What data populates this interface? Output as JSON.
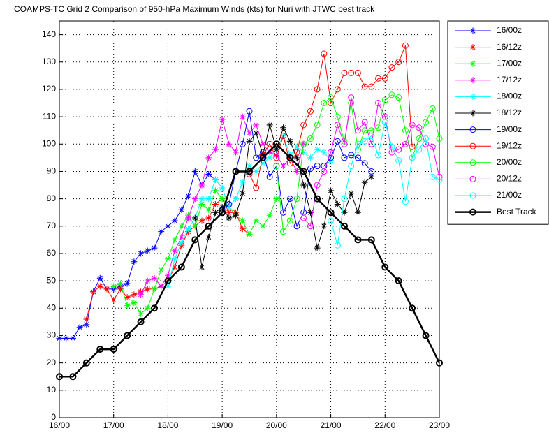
{
  "chart_data": {
    "type": "line",
    "title": "COAMPS-TC Grid 2 Comparison of 950-hPa Maximum Winds (kts) for Nuri with JTWC best track",
    "xlim": [
      16,
      23
    ],
    "xticks": [
      {
        "value": 16,
        "label": "16/00"
      },
      {
        "value": 17,
        "label": "17/00"
      },
      {
        "value": 18,
        "label": "18/00"
      },
      {
        "value": 19,
        "label": "19/00"
      },
      {
        "value": 20,
        "label": "20/00"
      },
      {
        "value": 21,
        "label": "21/00"
      },
      {
        "value": 22,
        "label": "22/00"
      },
      {
        "value": 23,
        "label": "23/00"
      }
    ],
    "ylim": [
      0,
      145
    ],
    "yticks": [
      0,
      10,
      20,
      30,
      40,
      50,
      60,
      70,
      80,
      90,
      100,
      110,
      120,
      130,
      140
    ],
    "grid": true,
    "legend": "outside-right",
    "series": [
      {
        "name": "16/00z",
        "color": "#0000ff",
        "marker": "star",
        "width": 1,
        "x": [
          16,
          16.125,
          16.25,
          16.375,
          16.5,
          16.625,
          16.75,
          16.875,
          17,
          17.125,
          17.25,
          17.375,
          17.5,
          17.625,
          17.75,
          17.875,
          18,
          18.125,
          18.25,
          18.375,
          18.5,
          18.625,
          18.75,
          18.875
        ],
        "values": [
          29,
          29,
          29,
          33,
          34,
          46,
          51,
          47,
          47,
          48,
          49,
          57,
          60,
          61,
          62,
          68,
          70,
          72,
          76,
          81,
          90,
          85,
          89,
          87
        ]
      },
      {
        "name": "16/12z",
        "color": "#ff0000",
        "marker": "star",
        "width": 1,
        "x": [
          16.5,
          16.625,
          16.75,
          16.875,
          17,
          17.125,
          17.25,
          17.375,
          17.5,
          17.625,
          17.75,
          17.875,
          18,
          18.125,
          18.25,
          18.375,
          18.5,
          18.625,
          18.75,
          18.875,
          19,
          19.125,
          19.25,
          19.375,
          19.5
        ],
        "values": [
          36,
          46,
          48,
          47,
          43,
          47,
          44,
          45,
          46,
          47,
          47,
          48,
          50,
          55,
          63,
          68,
          70,
          72,
          73,
          78,
          80,
          75,
          75,
          69,
          67
        ]
      },
      {
        "name": "17/00z",
        "color": "#00ff00",
        "marker": "star",
        "width": 1,
        "x": [
          17,
          17.125,
          17.25,
          17.375,
          17.5,
          17.625,
          17.75,
          17.875,
          18,
          18.125,
          18.25,
          18.375,
          18.5,
          18.625,
          18.75,
          18.875,
          19,
          19.125,
          19.25,
          19.375,
          19.5,
          19.625,
          19.75,
          19.875,
          20
        ],
        "values": [
          48,
          49,
          41,
          42,
          38,
          40,
          47,
          54,
          58,
          65,
          70,
          74,
          70,
          78,
          76,
          83,
          80,
          77,
          74,
          72,
          67,
          72,
          70,
          74,
          80
        ]
      },
      {
        "name": "17/12z",
        "color": "#ff00ff",
        "marker": "star",
        "width": 1,
        "x": [
          17.5,
          17.625,
          17.75,
          17.875,
          18,
          18.125,
          18.25,
          18.375,
          18.5,
          18.625,
          18.75,
          18.875,
          19,
          19.125,
          19.25,
          19.375,
          19.5,
          19.625,
          19.75,
          19.875,
          20,
          20.125,
          20.25,
          20.375,
          20.5
        ],
        "values": [
          45,
          50,
          51,
          48,
          52,
          61,
          66,
          73,
          80,
          85,
          95,
          98,
          109,
          100,
          97,
          110,
          104,
          107,
          100,
          97,
          96,
          92,
          95,
          90,
          100
        ]
      },
      {
        "name": "18/00z",
        "color": "#00ffff",
        "marker": "star",
        "width": 1,
        "x": [
          18,
          18.125,
          18.25,
          18.375,
          18.5,
          18.625,
          18.75,
          18.875,
          19,
          19.125,
          19.25,
          19.375,
          19.5,
          19.625,
          19.75,
          19.875,
          20,
          20.125,
          20.25,
          20.375,
          20.5,
          20.625,
          20.75,
          20.875,
          21
        ],
        "values": [
          48,
          58,
          64,
          69,
          73,
          80,
          80,
          87,
          84,
          77,
          80,
          86,
          92,
          90,
          93,
          95,
          98,
          103,
          96,
          99,
          97,
          95,
          98,
          97,
          94
        ]
      },
      {
        "name": "18/12z",
        "color": "#000000",
        "marker": "star",
        "width": 1,
        "x": [
          18.5,
          18.625,
          18.75,
          18.875,
          19,
          19.125,
          19.25,
          19.375,
          19.5,
          19.625,
          19.75,
          19.875,
          20,
          20.125,
          20.25,
          20.375,
          20.5,
          20.625,
          20.75,
          20.875,
          21,
          21.125,
          21.25,
          21.375,
          21.5,
          21.625,
          21.75
        ],
        "values": [
          73,
          55,
          66,
          75,
          77,
          73,
          74,
          82,
          101,
          104,
          96,
          107,
          98,
          106,
          101,
          95,
          85,
          75,
          62,
          70,
          83,
          78,
          75,
          82,
          75,
          86,
          88
        ]
      },
      {
        "name": "19/00z",
        "color": "#0000ff",
        "marker": "circle",
        "width": 1,
        "x": [
          19,
          19.125,
          19.25,
          19.375,
          19.5,
          19.625,
          19.75,
          19.875,
          20,
          20.125,
          20.25,
          20.375,
          20.5,
          20.625,
          20.75,
          20.875,
          21,
          21.125,
          21.25,
          21.375,
          21.5,
          21.625,
          21.75
        ],
        "values": [
          76,
          78,
          90,
          100,
          112,
          95,
          97,
          88,
          92,
          75,
          80,
          70,
          75,
          91,
          92,
          92,
          95,
          101,
          95,
          96,
          95,
          93,
          90
        ]
      },
      {
        "name": "19/12z",
        "color": "#ff0000",
        "marker": "circle",
        "width": 1,
        "x": [
          19.5,
          19.625,
          19.75,
          19.875,
          20,
          20.125,
          20.25,
          20.375,
          20.5,
          20.625,
          20.75,
          20.875,
          21,
          21.125,
          21.25,
          21.375,
          21.5,
          21.625,
          21.75,
          21.875,
          22,
          22.125,
          22.25,
          22.375,
          22.5
        ],
        "values": [
          89,
          84,
          96,
          100,
          95,
          103,
          93,
          97,
          107,
          112,
          120,
          133,
          115,
          120,
          126,
          126,
          126,
          121,
          121,
          124,
          124,
          128,
          130,
          136,
          99
        ]
      },
      {
        "name": "20/00z",
        "color": "#00ff00",
        "marker": "circle",
        "width": 1,
        "x": [
          20,
          20.125,
          20.25,
          20.375,
          20.5,
          20.625,
          20.75,
          20.875,
          21,
          21.125,
          21.25,
          21.375,
          21.5,
          21.625,
          21.75,
          21.875,
          22,
          22.125,
          22.25,
          22.375,
          22.5,
          22.625,
          22.75,
          22.875,
          23
        ],
        "values": [
          92,
          68,
          72,
          80,
          100,
          102,
          107,
          115,
          117,
          110,
          101,
          115,
          98,
          105,
          105,
          106,
          116,
          118,
          117,
          105,
          95,
          102,
          108,
          113,
          102
        ]
      },
      {
        "name": "20/12z",
        "color": "#ff00ff",
        "marker": "circle",
        "width": 1,
        "x": [
          20.5,
          20.625,
          20.75,
          20.875,
          21,
          21.125,
          21.25,
          21.375,
          21.5,
          21.625,
          21.75,
          21.875,
          22,
          22.125,
          22.25,
          22.375,
          22.5,
          22.625,
          22.75,
          22.875,
          23
        ],
        "values": [
          73,
          70,
          85,
          90,
          97,
          107,
          100,
          117,
          105,
          108,
          100,
          115,
          110,
          97,
          98,
          100,
          107,
          106,
          100,
          99,
          88
        ]
      },
      {
        "name": "21/00z",
        "color": "#00ffff",
        "marker": "circle",
        "width": 1,
        "x": [
          21,
          21.125,
          21.25,
          21.375,
          21.5,
          21.625,
          21.75,
          21.875,
          22,
          22.125,
          22.25,
          22.375,
          22.5,
          22.625,
          22.75,
          22.875,
          23
        ],
        "values": [
          72,
          63,
          80,
          92,
          100,
          101,
          103,
          96,
          108,
          99,
          94,
          79,
          95,
          98,
          102,
          88,
          87
        ]
      },
      {
        "name": "Best Track",
        "color": "#000000",
        "marker": "circle",
        "width": 2.5,
        "x": [
          16,
          16.25,
          16.5,
          16.75,
          17,
          17.25,
          17.5,
          17.75,
          18,
          18.25,
          18.5,
          18.75,
          19,
          19.25,
          19.5,
          19.75,
          20,
          20.25,
          20.5,
          20.75,
          21,
          21.25,
          21.5,
          21.75,
          22,
          22.25,
          22.5,
          22.75,
          23
        ],
        "values": [
          15,
          15,
          20,
          25,
          25,
          30,
          35,
          40,
          50,
          55,
          65,
          70,
          75,
          90,
          90,
          95,
          100,
          95,
          90,
          80,
          75,
          70,
          65,
          65,
          55,
          50,
          40,
          30,
          20
        ]
      }
    ]
  }
}
